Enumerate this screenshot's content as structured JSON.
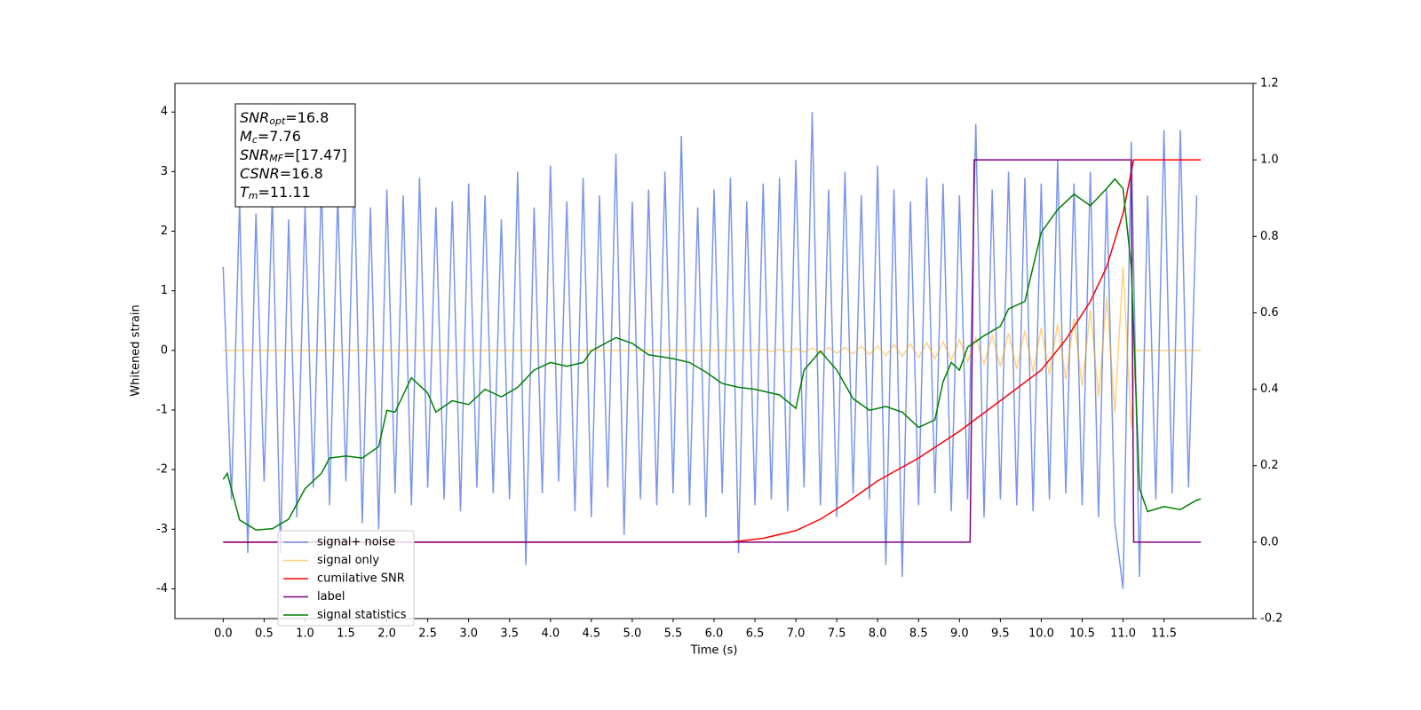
{
  "chart_data": {
    "type": "line",
    "xlabel": "Time (s)",
    "ylabel": "Whitened strain",
    "xlim": [
      -0.59,
      12.59
    ],
    "ylim": [
      -4.5,
      4.48
    ],
    "y2lim": [
      -0.2,
      1.2
    ],
    "xticks": [
      {
        "value": 0,
        "label": "0.0"
      },
      0.5,
      {
        "value": 1,
        "label": "1.0"
      },
      1.5,
      {
        "value": 2,
        "label": "2.0"
      },
      2.5,
      {
        "value": 3,
        "label": "3.0"
      },
      3.5,
      {
        "value": 4,
        "label": "4.0"
      },
      4.5,
      {
        "value": 5,
        "label": "5.0"
      },
      5.5,
      {
        "value": 6,
        "label": "6.0"
      },
      6.5,
      {
        "value": 7,
        "label": "7.0"
      },
      7.5,
      {
        "value": 8,
        "label": "8.0"
      },
      8.5,
      {
        "value": 9,
        "label": "9.0"
      },
      9.5,
      {
        "value": 10,
        "label": "10.0"
      },
      10.5,
      {
        "value": 11,
        "label": "11.0"
      },
      11.5
    ],
    "yticks": [
      -4,
      -3,
      -2,
      -1,
      0,
      1,
      2,
      3,
      4
    ],
    "y2ticks": [
      -0.2,
      {
        "value": 0,
        "label": "0.0"
      },
      0.2,
      0.4,
      0.6,
      0.8,
      {
        "value": 1,
        "label": "1.0"
      },
      1.2
    ],
    "legend_loc": "lower left",
    "annotation": [
      {
        "main": "SNR",
        "sub": "opt",
        "value": "=16.8"
      },
      {
        "main": "M",
        "sub": "c",
        "value": "=7.76"
      },
      {
        "main": "SNR",
        "sub": "MF",
        "value": "=[17.47]"
      },
      {
        "main": "CSNR",
        "sub": null,
        "value": "=16.8"
      },
      {
        "main": "T",
        "sub": "m",
        "value": "=11.11"
      }
    ],
    "series": [
      {
        "name": "signal+ noise",
        "color": "#4169e1",
        "opacity": 0.7,
        "x": [
          0,
          0.1,
          0.2,
          0.3,
          0.4,
          0.5,
          0.6,
          0.7,
          0.8,
          0.9,
          1,
          1.1,
          1.2,
          1.3,
          1.4,
          1.5,
          1.6,
          1.7,
          1.8,
          1.9,
          2,
          2.1,
          2.2,
          2.3,
          2.4,
          2.5,
          2.6,
          2.7,
          2.8,
          2.9,
          3,
          3.1,
          3.2,
          3.3,
          3.4,
          3.5,
          3.6,
          3.7,
          3.8,
          3.9,
          4,
          4.1,
          4.2,
          4.3,
          4.4,
          4.5,
          4.6,
          4.7,
          4.8,
          4.9,
          5,
          5.1,
          5.2,
          5.3,
          5.4,
          5.5,
          5.6,
          5.7,
          5.8,
          5.9,
          6,
          6.1,
          6.2,
          6.3,
          6.4,
          6.5,
          6.6,
          6.7,
          6.8,
          6.9,
          7,
          7.1,
          7.2,
          7.3,
          7.4,
          7.5,
          7.6,
          7.7,
          7.8,
          7.9,
          8,
          8.1,
          8.2,
          8.3,
          8.4,
          8.5,
          8.6,
          8.7,
          8.8,
          8.9,
          9,
          9.1,
          9.2,
          9.3,
          9.4,
          9.5,
          9.6,
          9.7,
          9.8,
          9.9,
          10,
          10.1,
          10.2,
          10.3,
          10.4,
          10.5,
          10.6,
          10.7,
          10.8,
          10.9,
          11,
          11.1,
          11.2,
          11.3,
          11.4,
          11.5,
          11.6,
          11.7,
          11.8,
          11.9
        ],
        "values": [
          1.4,
          -2.5,
          2.5,
          -3.4,
          2.3,
          -2.2,
          2.6,
          -3.4,
          2.2,
          -2.8,
          2.4,
          -2.3,
          2.8,
          -2.6,
          2.6,
          -2.2,
          3.0,
          -2.9,
          2.4,
          -3.0,
          2.7,
          -2.4,
          2.6,
          -2.6,
          2.9,
          -2.3,
          2.4,
          -2.5,
          2.5,
          -2.7,
          2.8,
          -2.3,
          2.6,
          -2.4,
          2.2,
          -2.5,
          3.0,
          -3.6,
          2.4,
          -2.4,
          3.1,
          -2.2,
          2.5,
          -2.7,
          2.9,
          -2.8,
          2.6,
          -2.3,
          3.3,
          -3.1,
          2.5,
          -2.5,
          2.7,
          -2.6,
          3.0,
          -2.4,
          3.6,
          -2.6,
          2.4,
          -2.8,
          2.7,
          -2.4,
          2.9,
          -3.4,
          2.5,
          -2.6,
          2.8,
          -2.5,
          2.9,
          -2.7,
          3.2,
          -2.3,
          4.0,
          -2.6,
          2.7,
          -2.8,
          3.0,
          -2.4,
          2.6,
          -2.5,
          3.1,
          -3.6,
          2.7,
          -3.8,
          2.5,
          -2.6,
          2.9,
          -2.4,
          2.8,
          -2.7,
          2.6,
          -2.5,
          3.8,
          -2.8,
          2.7,
          -2.5,
          3.0,
          -2.6,
          2.9,
          -2.7,
          2.8,
          -2.5,
          3.2,
          -2.4,
          2.8,
          -2.6,
          3.0,
          -2.8,
          2.7,
          -2.9,
          -4.0,
          3.5,
          -3.8,
          2.6,
          -2.5,
          3.7,
          -2.4,
          3.7,
          -2.3,
          2.6
        ]
      },
      {
        "name": "signal only",
        "color": "#ffa500",
        "opacity": 0.5,
        "x": [
          0,
          6.5,
          6.6,
          6.7,
          6.8,
          6.9,
          7,
          7.1,
          7.2,
          7.3,
          7.4,
          7.5,
          7.6,
          7.7,
          7.8,
          7.9,
          8,
          8.1,
          8.2,
          8.3,
          8.4,
          8.5,
          8.6,
          8.7,
          8.8,
          8.9,
          9,
          9.1,
          9.2,
          9.3,
          9.4,
          9.5,
          9.6,
          9.7,
          9.8,
          9.9,
          10,
          10.1,
          10.2,
          10.3,
          10.4,
          10.5,
          10.6,
          10.7,
          10.8,
          10.9,
          11,
          11.1,
          11.15,
          11.95
        ],
        "values": [
          0,
          0,
          0.02,
          -0.02,
          0.02,
          -0.03,
          0.03,
          -0.03,
          0.04,
          -0.04,
          0.05,
          -0.05,
          0.05,
          -0.06,
          0.07,
          -0.07,
          0.08,
          -0.09,
          0.1,
          -0.1,
          0.11,
          -0.12,
          0.13,
          -0.14,
          0.15,
          -0.16,
          0.18,
          -0.19,
          0.21,
          -0.23,
          0.25,
          -0.27,
          0.29,
          -0.31,
          0.33,
          -0.36,
          0.38,
          -0.41,
          0.45,
          -0.49,
          0.54,
          -0.6,
          0.68,
          -0.78,
          0.9,
          -1.05,
          1.4,
          -1.3,
          0,
          0
        ]
      },
      {
        "name": "cumilative SNR",
        "color": "#ff0000",
        "opacity": 1,
        "axis": "y2",
        "x": [
          0,
          6.2,
          6.6,
          7,
          7.3,
          7.6,
          8,
          8.5,
          9,
          9.5,
          10,
          10.3,
          10.6,
          10.8,
          11,
          11.1,
          11.13,
          11.95
        ],
        "values": [
          0,
          0,
          0.01,
          0.03,
          0.06,
          0.1,
          0.16,
          0.22,
          0.29,
          0.37,
          0.45,
          0.53,
          0.63,
          0.72,
          0.86,
          0.97,
          1,
          1
        ]
      },
      {
        "name": "label",
        "color": "#800080",
        "opacity": 1,
        "axis": "y2",
        "x": [
          0,
          9.13,
          9.18,
          11.1,
          11.13,
          11.95
        ],
        "values": [
          0,
          0,
          1,
          1,
          0,
          0
        ]
      },
      {
        "name": "signal statistics",
        "color": "#008000",
        "opacity": 1,
        "axis": "y2",
        "x": [
          0,
          0.05,
          0.2,
          0.4,
          0.6,
          0.8,
          1,
          1.2,
          1.3,
          1.5,
          1.7,
          1.9,
          2,
          2.1,
          2.3,
          2.5,
          2.6,
          2.8,
          3,
          3.2,
          3.4,
          3.6,
          3.8,
          4,
          4.2,
          4.4,
          4.5,
          4.8,
          5,
          5.2,
          5.5,
          5.7,
          5.9,
          6.1,
          6.3,
          6.5,
          6.8,
          7,
          7.1,
          7.3,
          7.5,
          7.7,
          7.9,
          8.1,
          8.3,
          8.5,
          8.7,
          8.8,
          8.9,
          9,
          9.1,
          9.3,
          9.5,
          9.6,
          9.8,
          10,
          10.2,
          10.4,
          10.6,
          10.8,
          10.9,
          11,
          11.1,
          11.2,
          11.3,
          11.5,
          11.7,
          11.9,
          11.95
        ],
        "values": [
          0.164,
          0.18,
          0.058,
          0.032,
          0.035,
          0.06,
          0.14,
          0.18,
          0.22,
          0.225,
          0.22,
          0.25,
          0.345,
          0.34,
          0.43,
          0.39,
          0.34,
          0.37,
          0.36,
          0.4,
          0.38,
          0.405,
          0.45,
          0.47,
          0.46,
          0.47,
          0.5,
          0.535,
          0.52,
          0.49,
          0.48,
          0.47,
          0.445,
          0.415,
          0.405,
          0.4,
          0.385,
          0.35,
          0.45,
          0.5,
          0.45,
          0.375,
          0.345,
          0.355,
          0.34,
          0.3,
          0.32,
          0.42,
          0.47,
          0.45,
          0.51,
          0.54,
          0.565,
          0.61,
          0.63,
          0.81,
          0.87,
          0.91,
          0.88,
          0.925,
          0.95,
          0.925,
          0.72,
          0.14,
          0.08,
          0.093,
          0.085,
          0.11,
          0.113
        ]
      }
    ]
  }
}
